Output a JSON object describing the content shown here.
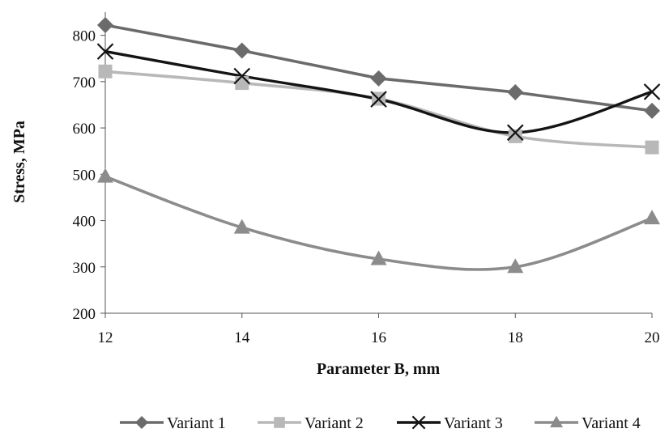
{
  "chart_data": {
    "type": "line",
    "title": "",
    "xlabel": "Parameter B, mm",
    "ylabel": "Stress, MPa",
    "x": [
      12,
      14,
      16,
      18,
      20
    ],
    "xlim": [
      12,
      20
    ],
    "ylim": [
      200,
      850
    ],
    "yticks": [
      200,
      300,
      400,
      500,
      600,
      700,
      800
    ],
    "grid": false,
    "legend_position": "bottom",
    "series": [
      {
        "name": "Variant 1",
        "values": [
          822,
          767,
          707,
          677,
          637
        ],
        "color": "#6b6b6b",
        "marker": "diamond",
        "smooth": false
      },
      {
        "name": "Variant 2",
        "values": [
          722,
          697,
          663,
          582,
          558
        ],
        "color": "#b8b8b8",
        "marker": "square",
        "smooth": true
      },
      {
        "name": "Variant 3",
        "values": [
          765,
          712,
          662,
          590,
          678
        ],
        "color": "#141414",
        "marker": "x",
        "smooth": true
      },
      {
        "name": "Variant 4",
        "values": [
          495,
          385,
          317,
          300,
          405
        ],
        "color": "#8c8c8c",
        "marker": "triangle",
        "smooth": true
      }
    ]
  }
}
